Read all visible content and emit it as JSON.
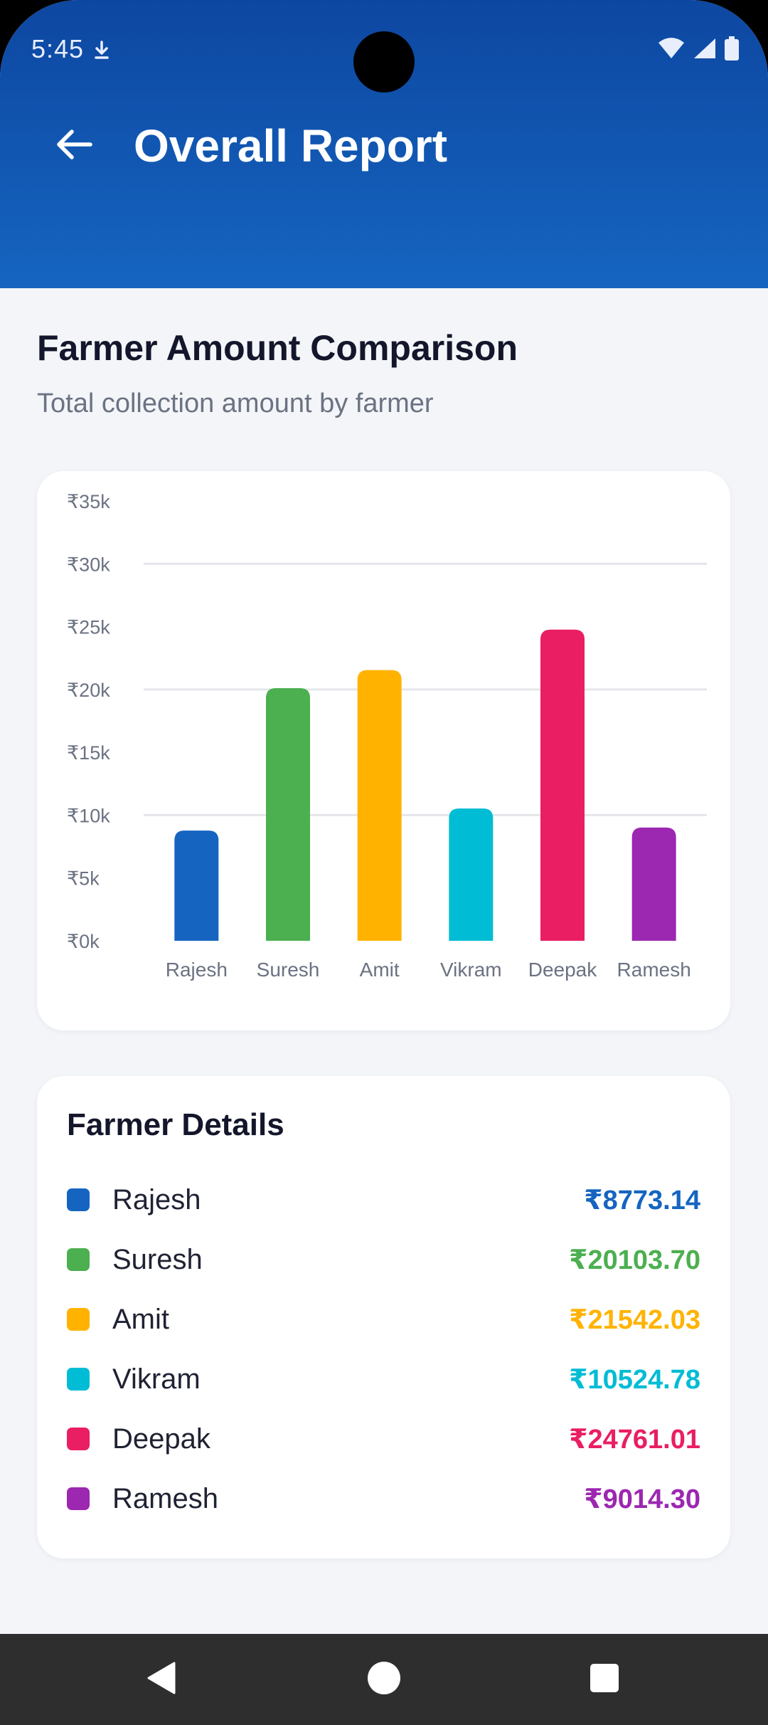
{
  "status_bar": {
    "time": "5:45",
    "icons": [
      "download-icon",
      "wifi-icon",
      "signal-icon",
      "battery-icon"
    ]
  },
  "header": {
    "title": "Overall Report",
    "back_icon": "arrow-left-icon"
  },
  "section": {
    "title": "Farmer Amount Comparison",
    "subtitle": "Total collection amount by farmer"
  },
  "chart_data": {
    "type": "bar",
    "categories": [
      "Rajesh",
      "Suresh",
      "Amit",
      "Vikram",
      "Deepak",
      "Ramesh"
    ],
    "values": [
      8773.14,
      20103.7,
      21542.03,
      10524.78,
      24761.01,
      9014.3
    ],
    "colors": [
      "#1565c0",
      "#4caf50",
      "#ffb300",
      "#00bcd4",
      "#e91e63",
      "#9c27b0"
    ],
    "yticks": [
      "₹0k",
      "₹5k",
      "₹10k",
      "₹15k",
      "₹20k",
      "₹25k",
      "₹30k",
      "₹35k"
    ],
    "ylim": [
      0,
      35000
    ],
    "gridlines_at": [
      10000,
      20000,
      30000
    ]
  },
  "details": {
    "title": "Farmer Details",
    "rows": [
      {
        "name": "Rajesh",
        "amount": "₹8773.14",
        "color": "#1565c0"
      },
      {
        "name": "Suresh",
        "amount": "₹20103.70",
        "color": "#4caf50"
      },
      {
        "name": "Amit",
        "amount": "₹21542.03",
        "color": "#ffb300"
      },
      {
        "name": "Vikram",
        "amount": "₹10524.78",
        "color": "#00bcd4"
      },
      {
        "name": "Deepak",
        "amount": "₹24761.01",
        "color": "#e91e63"
      },
      {
        "name": "Ramesh",
        "amount": "₹9014.30",
        "color": "#9c27b0"
      }
    ]
  },
  "navbar": {
    "back_icon": "nav-back-icon",
    "home_icon": "nav-home-icon",
    "recents_icon": "nav-recents-icon"
  }
}
